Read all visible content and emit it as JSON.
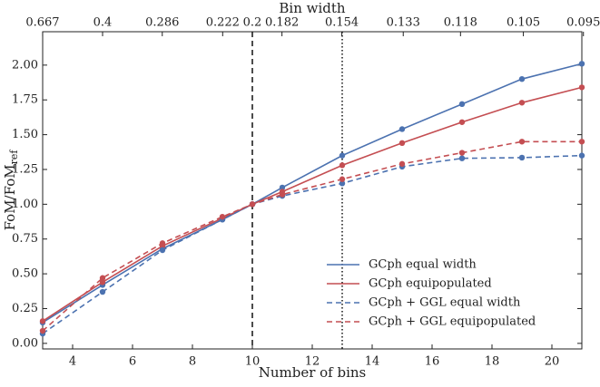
{
  "chart_data": {
    "type": "line",
    "xlabel": "Number of bins",
    "ylabel": "FoM/FoM",
    "ylabel_sub": "ref",
    "x2label": "Bin width",
    "x": [
      3,
      5,
      7,
      9,
      10,
      11,
      13,
      15,
      17,
      19,
      21
    ],
    "series": [
      {
        "name": "GCph equal width",
        "color": "#4c72b0",
        "dash": "solid",
        "values": [
          0.15,
          0.42,
          0.68,
          0.89,
          1.0,
          1.12,
          1.35,
          1.54,
          1.72,
          1.9,
          2.01
        ]
      },
      {
        "name": "GCph equipopulated",
        "color": "#c44e52",
        "dash": "solid",
        "values": [
          0.16,
          0.44,
          0.7,
          0.9,
          1.0,
          1.09,
          1.28,
          1.44,
          1.59,
          1.73,
          1.84
        ]
      },
      {
        "name": "GCph + GGL equal width",
        "color": "#4c72b0",
        "dash": "dashed",
        "values": [
          0.07,
          0.37,
          0.67,
          0.89,
          1.0,
          1.06,
          1.15,
          1.27,
          1.33,
          1.335,
          1.35
        ]
      },
      {
        "name": "GCph + GGL equipopulated",
        "color": "#c44e52",
        "dash": "dashed",
        "values": [
          0.09,
          0.47,
          0.72,
          0.91,
          1.0,
          1.07,
          1.18,
          1.29,
          1.37,
          1.45,
          1.45
        ]
      }
    ],
    "xlim": [
      3,
      21
    ],
    "xticks": [
      4,
      6,
      8,
      10,
      12,
      14,
      16,
      18,
      20
    ],
    "ylim": [
      -0.04,
      2.24
    ],
    "yticks": [
      {
        "value": 0,
        "label": "0.00"
      },
      {
        "value": 0.25,
        "label": "0.25"
      },
      {
        "value": 0.5,
        "label": "0.50"
      },
      {
        "value": 0.75,
        "label": "0.75"
      },
      {
        "value": 1,
        "label": "1.00"
      },
      {
        "value": 1.25,
        "label": "1.25"
      },
      {
        "value": 1.5,
        "label": "1.50"
      },
      {
        "value": 1.75,
        "label": "1.75"
      },
      {
        "value": 2,
        "label": "2.00"
      }
    ],
    "x2ticks": [
      0.667,
      0.4,
      0.286,
      0.222,
      0.2,
      0.182,
      0.154,
      0.133,
      0.118,
      0.105,
      0.095
    ],
    "vlines": [
      {
        "x": 10,
        "style": "dashed"
      },
      {
        "x": 13,
        "style": "dotted"
      }
    ],
    "legend": "lower right"
  }
}
